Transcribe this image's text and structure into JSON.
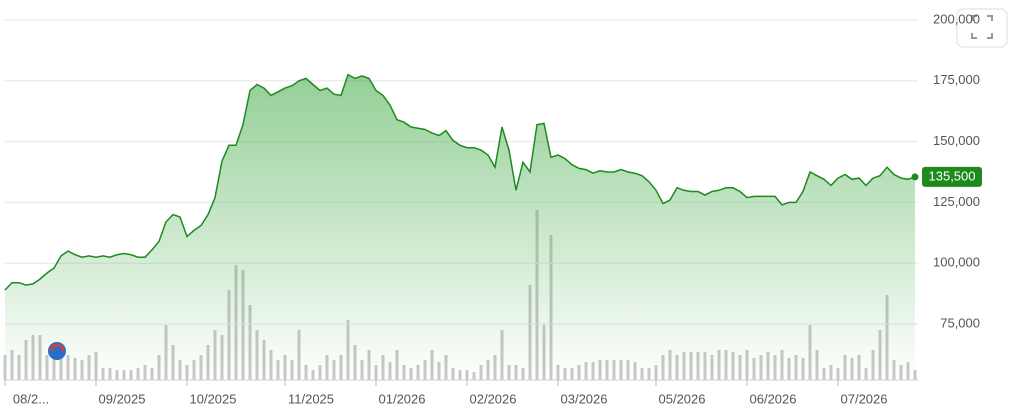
{
  "chart_data": {
    "type": "line",
    "categories": [
      "08/2...",
      null,
      null,
      null,
      null,
      null,
      null,
      null,
      null,
      null,
      null,
      null,
      null,
      "09/2025",
      null,
      null,
      null,
      null,
      null,
      null,
      null,
      null,
      null,
      null,
      null,
      null,
      "10/2025",
      null,
      null,
      null,
      null,
      null,
      null,
      null,
      null,
      null,
      null,
      null,
      null,
      null,
      "11/2025",
      null,
      null,
      null,
      null,
      null,
      null,
      null,
      null,
      null,
      null,
      null,
      null,
      "01/2026",
      null,
      null,
      null,
      null,
      null,
      null,
      null,
      null,
      null,
      null,
      null,
      null,
      "02/2026",
      null,
      null,
      null,
      null,
      null,
      null,
      null,
      null,
      null,
      null,
      null,
      null,
      "03/2026",
      null,
      null,
      null,
      null,
      null,
      null,
      null,
      null,
      null,
      null,
      null,
      null,
      null,
      "05/2026",
      null,
      null,
      null,
      null,
      null,
      null,
      null,
      null,
      null,
      null,
      null,
      null,
      "06/2026",
      null,
      null,
      null,
      null,
      null,
      null,
      null,
      null,
      null,
      null,
      null,
      null,
      "07/2026",
      null,
      null,
      null,
      null,
      null,
      null,
      null,
      null,
      null,
      null,
      null
    ],
    "series": [
      {
        "color": "#1e8a1e",
        "values": [
          89000,
          92000,
          92000,
          91000,
          91500,
          93500,
          96000,
          98000,
          103000,
          105000,
          103500,
          102500,
          103000,
          102500,
          103000,
          102500,
          103500,
          104000,
          103500,
          102500,
          102500,
          105500,
          109000,
          117000,
          120000,
          119000,
          111000,
          113500,
          115500,
          120000,
          127000,
          142000,
          148500,
          148500,
          157000,
          171000,
          173500,
          172000,
          169000,
          170500,
          172000,
          173000,
          175000,
          176000,
          173500,
          171000,
          172000,
          169500,
          169000,
          177500,
          176000,
          177000,
          176000,
          171000,
          169000,
          165000,
          159000,
          158000,
          156000,
          155500,
          155000,
          153500,
          152500,
          154500,
          150500,
          148500,
          147500,
          147500,
          146500,
          144500,
          139500,
          156000,
          146500,
          130000,
          141500,
          137500,
          157000,
          157500,
          143500,
          144500,
          143000,
          140500,
          139000,
          138500,
          137000,
          138000,
          137500,
          137500,
          138500,
          137500,
          137000,
          136000,
          133500,
          130000,
          124500,
          126000,
          131000,
          130000,
          129500,
          129500,
          128000,
          129500,
          130000,
          131000,
          131000,
          129500,
          127000,
          127500,
          127500,
          127500,
          127500,
          124000,
          125000,
          125000,
          129500,
          137500,
          136000,
          134500,
          132000,
          135000,
          136500,
          134500,
          135000,
          132000,
          135000,
          136000,
          139500,
          136500,
          135000,
          134500,
          135500
        ]
      },
      {
        "color": "#c8c8c8",
        "values": [
          25,
          30,
          25,
          40,
          45,
          45,
          25,
          35,
          30,
          25,
          22,
          20,
          25,
          28,
          12,
          12,
          10,
          10,
          10,
          12,
          15,
          12,
          25,
          55,
          35,
          20,
          15,
          20,
          25,
          35,
          50,
          45,
          90,
          115,
          110,
          75,
          50,
          40,
          30,
          20,
          25,
          20,
          50,
          15,
          10,
          15,
          25,
          20,
          25,
          60,
          35,
          20,
          30,
          15,
          25,
          18,
          30,
          15,
          12,
          15,
          20,
          30,
          18,
          25,
          12,
          10,
          10,
          8,
          15,
          20,
          25,
          50,
          15,
          15,
          12,
          95,
          170,
          55,
          145,
          15,
          12,
          12,
          15,
          18,
          18,
          20,
          20,
          20,
          20,
          20,
          18,
          12,
          12,
          15,
          25,
          30,
          25,
          28,
          28,
          28,
          28,
          25,
          30,
          30,
          28,
          25,
          30,
          22,
          25,
          28,
          25,
          30,
          22,
          25,
          22,
          55,
          30,
          12,
          15,
          12,
          25,
          22,
          25,
          12,
          30,
          50,
          85,
          20,
          15,
          18,
          10
        ]
      }
    ],
    "last_price_label": "135,500",
    "ylim": [
      52000,
      200000
    ],
    "yticks": [
      {
        "value": 75000,
        "label": "75,000"
      },
      {
        "value": 100000,
        "label": "100,000"
      },
      {
        "value": 125000,
        "label": "125,000"
      },
      {
        "value": 150000,
        "label": "150,000"
      },
      {
        "value": 175000,
        "label": "175,000"
      },
      {
        "value": 200000,
        "label": "200,000"
      }
    ],
    "grid": true
  }
}
